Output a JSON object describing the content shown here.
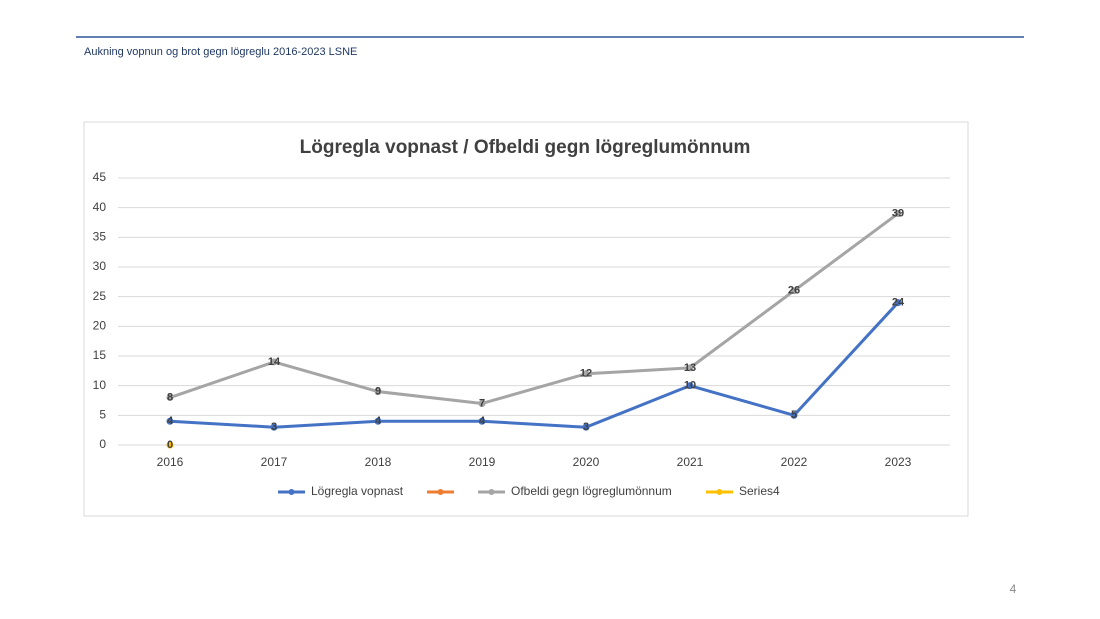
{
  "header": {
    "title": "Aukning vopnun og brot gegn lögreglu 2016-2023 LSNE"
  },
  "page_number": 4,
  "chart_data": {
    "type": "line",
    "title": "Lögregla vopnast / Ofbeldi gegn lögreglumönnum",
    "categories": [
      "2016",
      "2017",
      "2018",
      "2019",
      "2020",
      "2021",
      "2022",
      "2023"
    ],
    "series": [
      {
        "name": "Lögregla vopnast",
        "color": "#4472c4",
        "values": [
          4,
          3,
          4,
          4,
          3,
          10,
          5,
          24
        ]
      },
      {
        "color": "#ed7d31",
        "values": [
          null,
          null,
          null,
          null,
          null,
          null,
          null,
          null
        ]
      },
      {
        "name": "Ofbeldi gegn lögreglumönnum",
        "color": "#a5a5a5",
        "values": [
          8,
          14,
          9,
          7,
          12,
          13,
          26,
          39
        ]
      },
      {
        "name": "Series4",
        "color": "#ffc000",
        "values": [
          0,
          null,
          null,
          null,
          null,
          null,
          null,
          null
        ]
      }
    ],
    "ylim": [
      0,
      45
    ],
    "yticks": [
      0,
      5,
      10,
      15,
      20,
      25,
      30,
      35,
      40,
      45
    ],
    "grid": true,
    "legend": "bottom"
  }
}
